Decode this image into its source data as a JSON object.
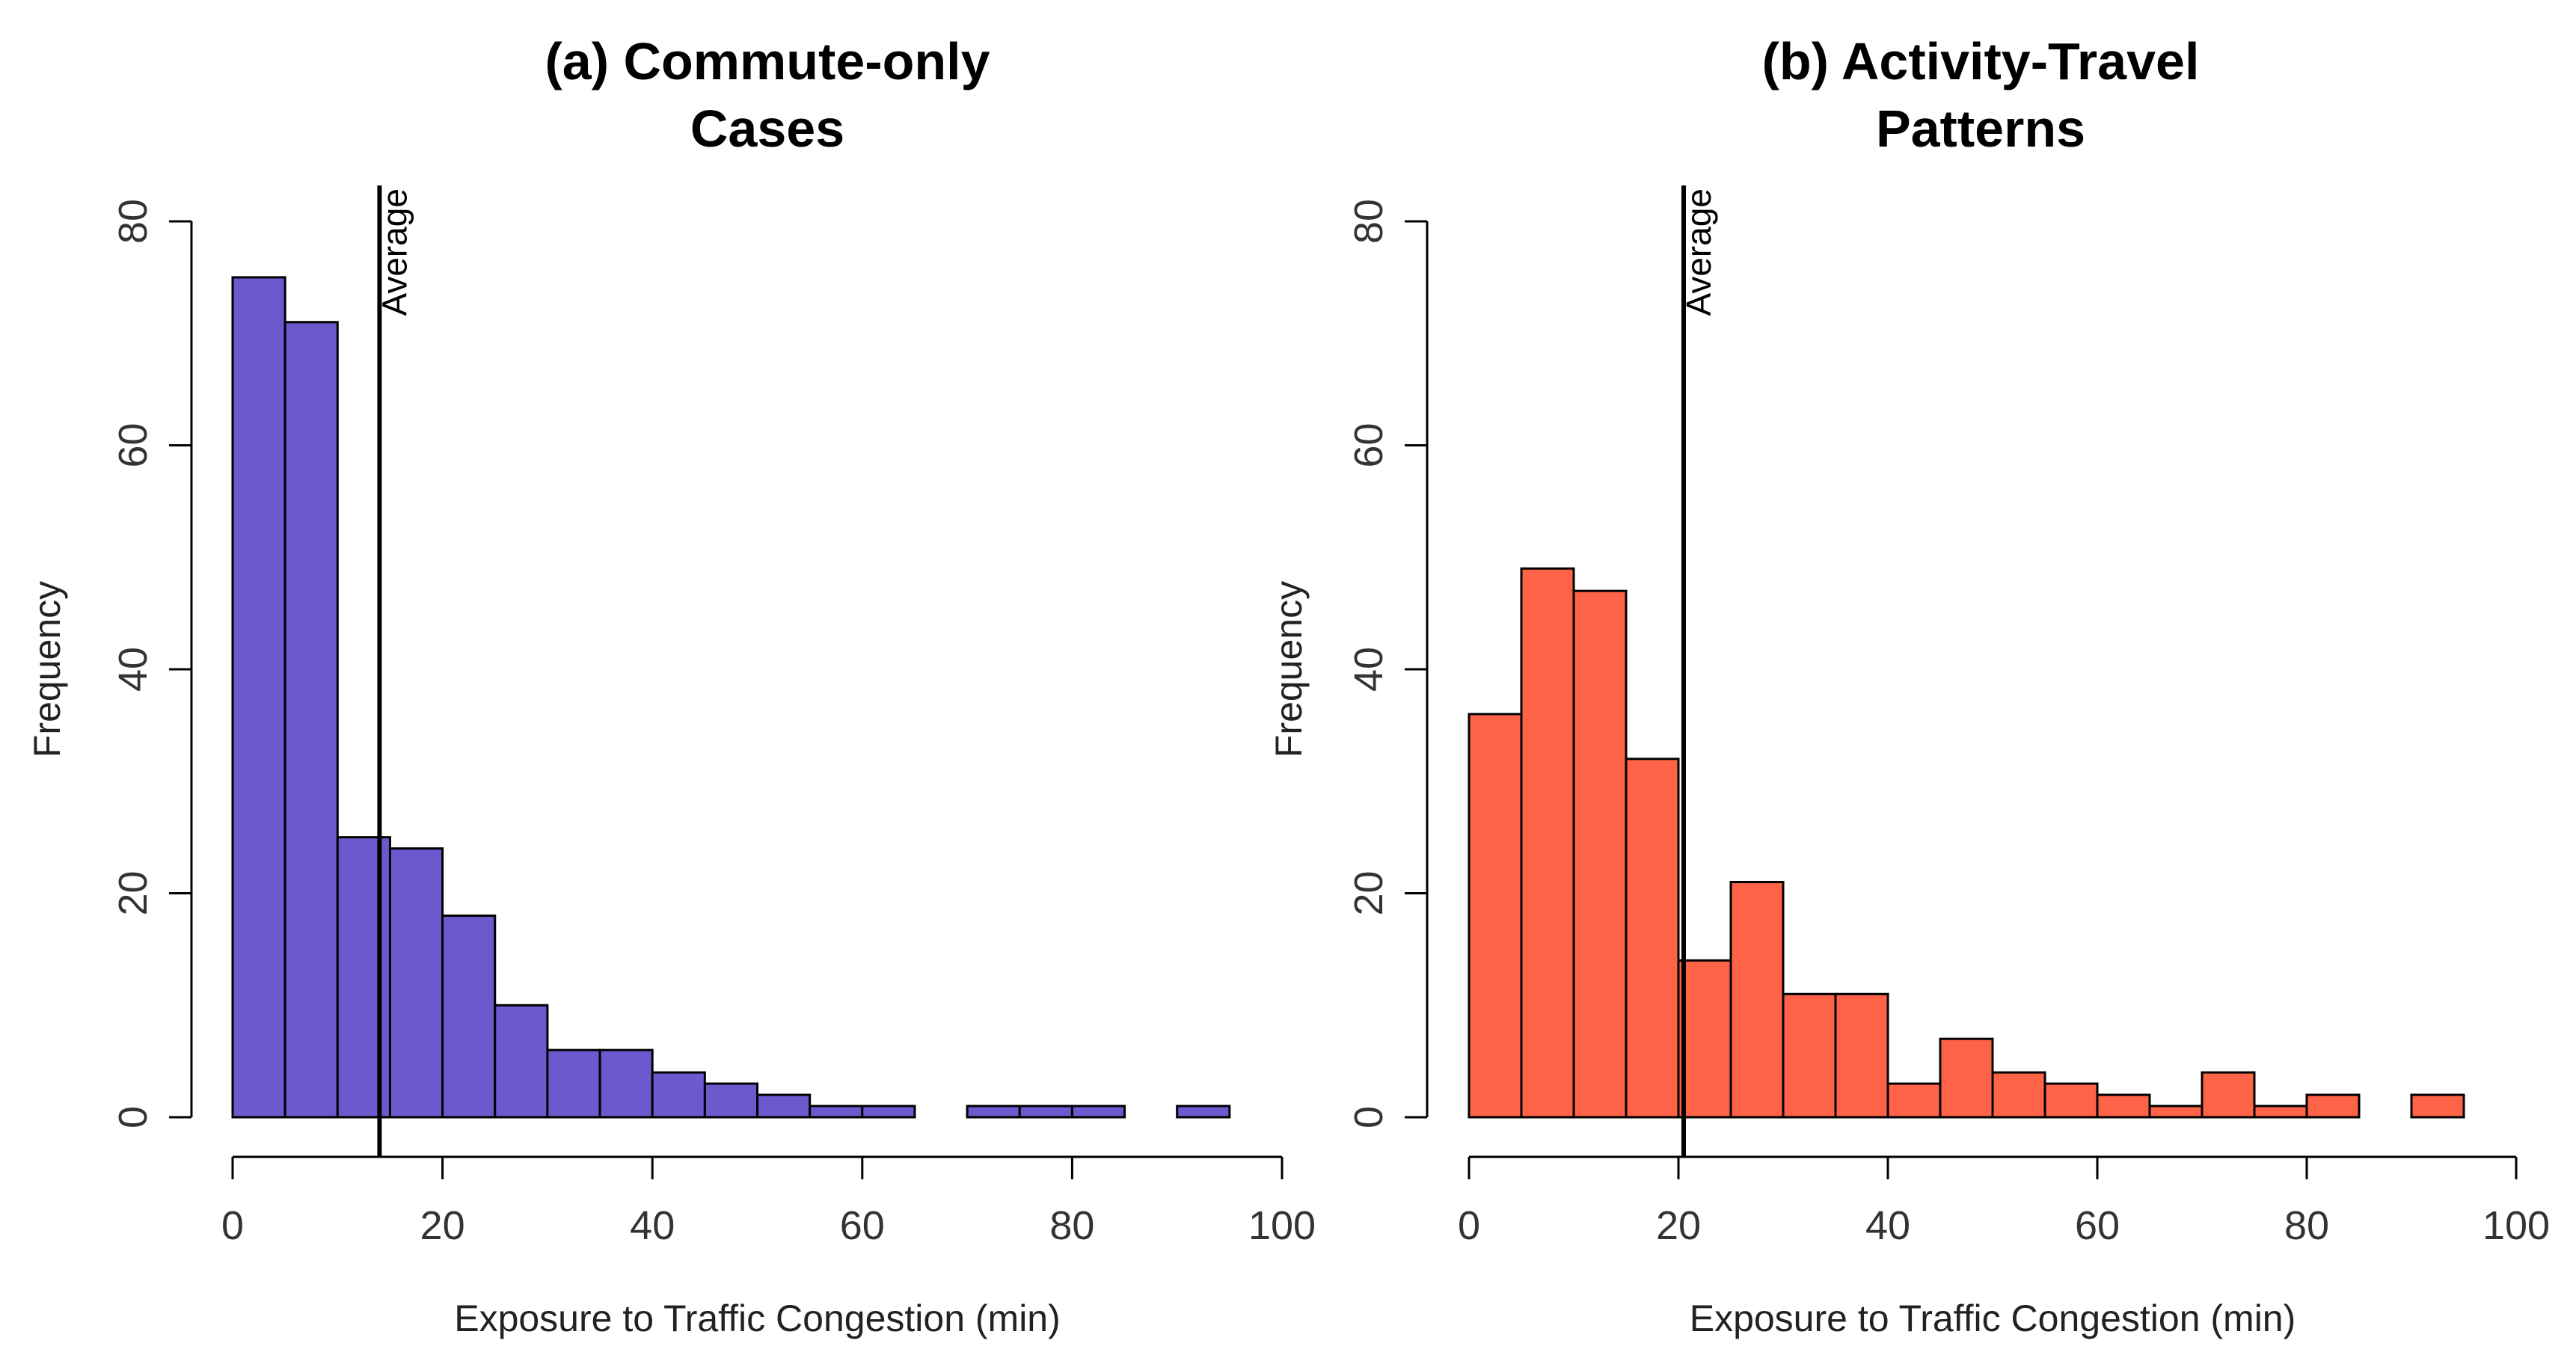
{
  "chart_data": [
    {
      "type": "bar",
      "subtype": "histogram",
      "title": [
        "(a) Commute-only",
        "Cases"
      ],
      "xlabel": "Exposure to Traffic Congestion (min)",
      "ylabel": "Frequency",
      "bin_width": 5,
      "bin_start": 0,
      "values": [
        75,
        71,
        25,
        24,
        18,
        10,
        6,
        6,
        4,
        3,
        2,
        1,
        1,
        0,
        1,
        1,
        1,
        0,
        1
      ],
      "xlim": [
        0,
        100
      ],
      "ylim": [
        0,
        80
      ],
      "xticks": [
        0,
        20,
        40,
        60,
        80,
        100
      ],
      "yticks": [
        0,
        20,
        40,
        60,
        80
      ],
      "average": 14,
      "average_label": "Average",
      "color": "#6A5ACD"
    },
    {
      "type": "bar",
      "subtype": "histogram",
      "title": [
        "(b) Activity-Travel",
        "Patterns"
      ],
      "xlabel": "Exposure to Traffic Congestion (min)",
      "ylabel": "Frequency",
      "bin_width": 5,
      "bin_start": 0,
      "values": [
        36,
        49,
        47,
        32,
        14,
        21,
        11,
        11,
        3,
        7,
        4,
        3,
        2,
        1,
        4,
        1,
        2,
        0,
        2
      ],
      "xlim": [
        0,
        100
      ],
      "ylim": [
        0,
        80
      ],
      "xticks": [
        0,
        20,
        40,
        60,
        80,
        100
      ],
      "yticks": [
        0,
        20,
        40,
        60,
        80
      ],
      "average": 20.5,
      "average_label": "Average",
      "color": "#FF6347"
    }
  ]
}
